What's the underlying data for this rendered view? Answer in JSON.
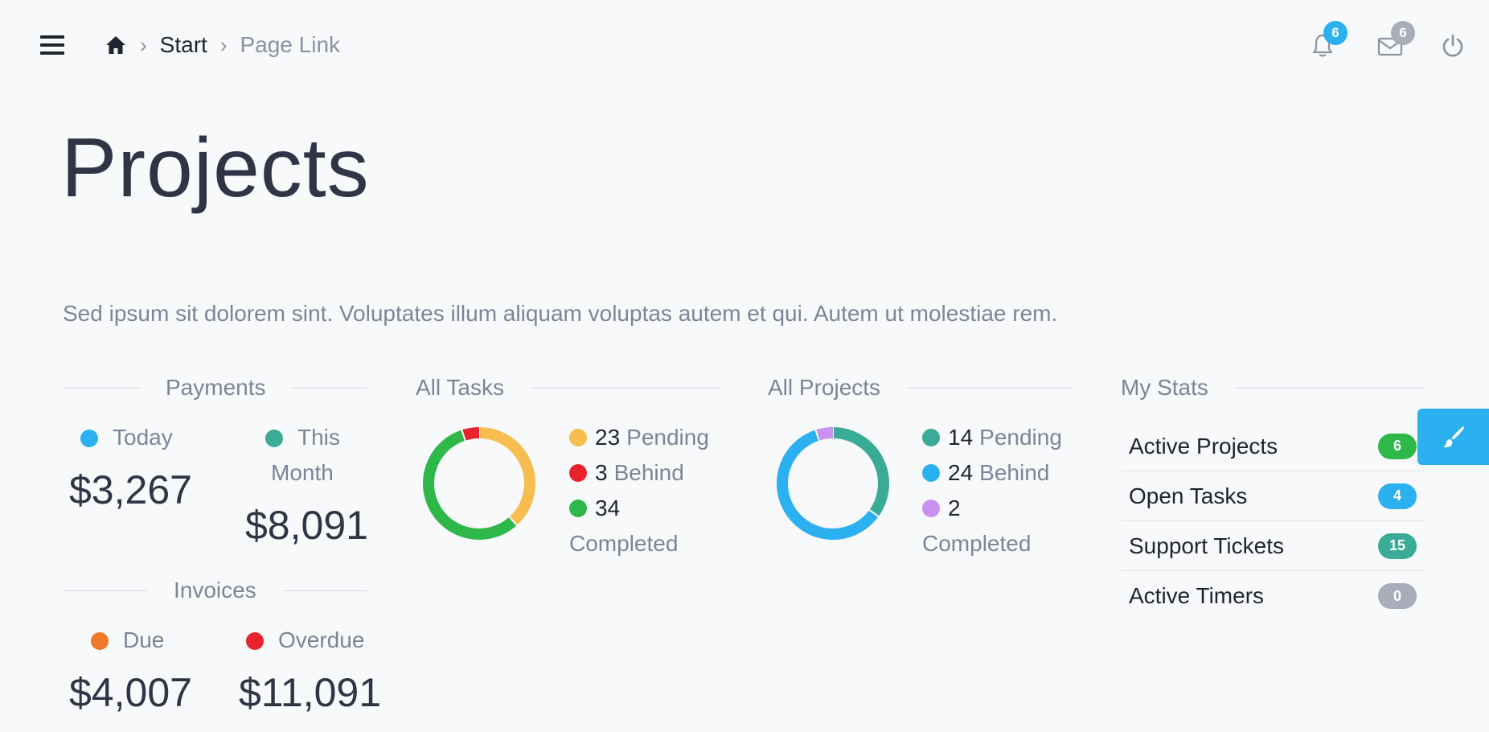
{
  "colors": {
    "blue": "#2bb0f0",
    "teal": "#3aab96",
    "orange": "#f07a2a",
    "red": "#e8232e",
    "yellow": "#f8bd4f",
    "green": "#2eb84a",
    "purple": "#c992f2",
    "gray": "#a7adb9"
  },
  "header": {
    "breadcrumb": {
      "home_icon": "home-icon",
      "start": "Start",
      "current": "Page Link"
    },
    "notifications": {
      "icon": "bell-icon",
      "count": "6"
    },
    "messages": {
      "icon": "envelope-icon",
      "count": "6"
    },
    "power": {
      "icon": "power-icon"
    }
  },
  "page": {
    "title": "Projects",
    "description": "Sed ipsum sit dolorem sint. Voluptates illum aliquam voluptas autem et qui. Autem ut molestiae rem."
  },
  "payments": {
    "title": "Payments",
    "today_label": "Today",
    "today_value": "$3,267",
    "month_label_1": "This",
    "month_label_2": "Month",
    "month_value": "$8,091"
  },
  "invoices": {
    "title": "Invoices",
    "due_label": "Due",
    "due_value": "$4,007",
    "overdue_label": "Overdue",
    "overdue_value": "$11,091"
  },
  "tasks": {
    "title": "All Tasks",
    "pending_num": "23",
    "pending_label": "Pending",
    "behind_num": "3",
    "behind_label": "Behind",
    "completed_num": "34",
    "completed_label": "Completed"
  },
  "projects": {
    "title": "All Projects",
    "pending_num": "14",
    "pending_label": "Pending",
    "behind_num": "24",
    "behind_label": "Behind",
    "completed_num": "2",
    "completed_label": "Completed"
  },
  "my_stats": {
    "title": "My Stats",
    "rows": [
      {
        "label": "Active Projects",
        "count": "6",
        "color": "#2eb84a"
      },
      {
        "label": "Open Tasks",
        "count": "4",
        "color": "#2bb0f0"
      },
      {
        "label": "Support Tickets",
        "count": "15",
        "color": "#3aab96"
      },
      {
        "label": "Active Timers",
        "count": "0",
        "color": "#a7adb9"
      }
    ]
  },
  "paint_button": {
    "icon": "paintbrush-icon"
  },
  "chart_data": [
    {
      "type": "pie",
      "title": "All Tasks",
      "categories": [
        "Pending",
        "Completed",
        "Behind"
      ],
      "values": [
        23,
        34,
        3
      ],
      "colors": [
        "#f8bd4f",
        "#2eb84a",
        "#e8232e"
      ]
    },
    {
      "type": "pie",
      "title": "All Projects",
      "categories": [
        "Pending",
        "Behind",
        "Completed"
      ],
      "values": [
        14,
        24,
        2
      ],
      "colors": [
        "#3aab96",
        "#2bb0f0",
        "#c992f2"
      ]
    }
  ]
}
